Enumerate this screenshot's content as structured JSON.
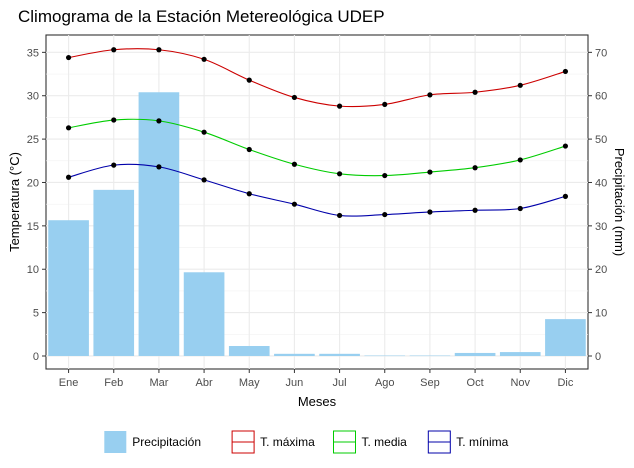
{
  "chart_data": {
    "type": "bar+line",
    "title": "Climograma de la Estación Metereológica UDEP",
    "xlabel": "Meses",
    "ylabel_left": "Temperatura (°C)",
    "ylabel_right": "Precipitación (mm)",
    "categories": [
      "Ene",
      "Feb",
      "Mar",
      "Abr",
      "May",
      "Jun",
      "Jul",
      "Ago",
      "Sep",
      "Oct",
      "Nov",
      "Dic"
    ],
    "ylim_left": [
      -1.5,
      37
    ],
    "ylim_right": [
      -3,
      74
    ],
    "yticks_left": [
      "0",
      "5",
      "10",
      "15",
      "20",
      "25",
      "30",
      "35"
    ],
    "yticks_right": [
      "0",
      "10",
      "20",
      "30",
      "40",
      "50",
      "60",
      "70"
    ],
    "grid": true,
    "legend_position": "bottom",
    "bars": {
      "name": "Precipitación",
      "axis": "right",
      "color": "#98cff0",
      "values": [
        31.3,
        38.3,
        60.8,
        19.3,
        2.3,
        0.5,
        0.5,
        0.1,
        0.1,
        0.7,
        0.9,
        8.5
      ]
    },
    "series": [
      {
        "name": "T. máxima",
        "color": "#cc0000",
        "values": [
          34.4,
          35.3,
          35.3,
          34.2,
          31.8,
          29.8,
          28.8,
          29.0,
          30.1,
          30.4,
          31.2,
          32.8
        ]
      },
      {
        "name": "T. media",
        "color": "#00cc00",
        "values": [
          26.3,
          27.2,
          27.1,
          25.8,
          23.8,
          22.1,
          21.0,
          20.8,
          21.2,
          21.7,
          22.6,
          24.2
        ]
      },
      {
        "name": "T. mínima",
        "color": "#0000aa",
        "values": [
          20.6,
          22.0,
          21.8,
          20.3,
          18.7,
          17.5,
          16.2,
          16.3,
          16.6,
          16.8,
          17.0,
          18.4
        ]
      }
    ]
  }
}
